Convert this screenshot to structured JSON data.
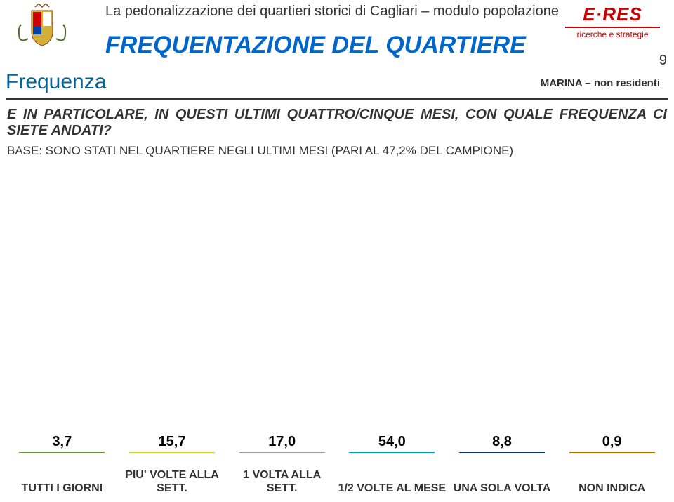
{
  "header": {
    "subtitle": "La pedonalizzazione dei quartieri storici di Cagliari – modulo popolazione",
    "title": "FREQUENTAZIONE DEL QUARTIERE",
    "page_num": "9",
    "subhead_left": "Frequenza",
    "subhead_right": "MARINA – non residenti",
    "logo_brand": "E·RES",
    "logo_tag": "ricerche e strategie"
  },
  "question": "E IN PARTICOLARE, IN QUESTI ULTIMI QUATTRO/CINQUE MESI, CON QUALE FREQUENZA CI SIETE ANDATI?",
  "base_note": "BASE: SONO STATI NEL QUARTIERE NEGLI ULTIMI MESI (PARI AL 47,2% DEL CAMPIONE)",
  "chart": {
    "type": "bar",
    "ymax": 60,
    "bar_width_pct": 78,
    "label_fontsize": 20,
    "xlabel_fontsize": 16,
    "series": [
      {
        "label": "TUTTI I GIORNI",
        "value": 3.7,
        "value_text": "3,7",
        "fill": "#99cc66",
        "border": "#669933"
      },
      {
        "label": "PIU' VOLTE ALLA SETT.",
        "value": 15.7,
        "value_text": "15,7",
        "fill": "#ffff66",
        "border": "#cccc33"
      },
      {
        "label": "1 VOLTA ALLA SETT.",
        "value": 17.0,
        "value_text": "17,0",
        "fill": "#ffffff",
        "border": "#999999"
      },
      {
        "label": "1/2 VOLTE AL MESE",
        "value": 54.0,
        "value_text": "54,0",
        "fill": "#00ccff",
        "border": "#0099cc"
      },
      {
        "label": "UNA SOLA VOLTA",
        "value": 8.8,
        "value_text": "8,8",
        "fill": "#3366cc",
        "border": "#003399"
      },
      {
        "label": "NON INDICA",
        "value": 0.9,
        "value_text": "0,9",
        "fill": "#ff9933",
        "border": "#cc6600"
      }
    ]
  }
}
